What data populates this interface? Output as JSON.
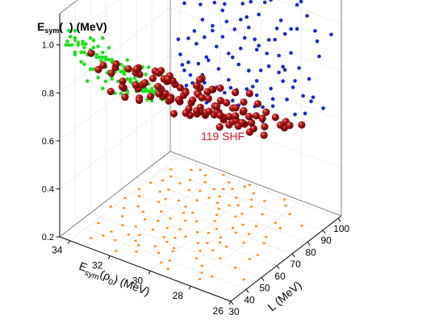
{
  "chart_data": {
    "type": "scatter",
    "title": "",
    "annotation": "119 SHF",
    "axes": {
      "x": {
        "label": "E_sym(ρ0) (MeV)",
        "range": [
          26,
          34.5
        ],
        "ticks": [
          26,
          28,
          30,
          32,
          34
        ]
      },
      "y": {
        "label": "L (MeV)",
        "range": [
          30,
          102
        ],
        "ticks": [
          30,
          40,
          50,
          60,
          70,
          80,
          90,
          100
        ]
      },
      "z": {
        "label": "E_sym(ρ0) (MeV)",
        "range": [
          0.2,
          1.13
        ],
        "ticks": [
          0.2,
          0.4,
          0.6,
          0.8,
          1.0
        ]
      }
    },
    "grid": true,
    "colors": {
      "main": "#b51616",
      "xz": "#1528d6",
      "yz": "#1fe01f",
      "xy": "#ff8c1a",
      "annotation": "#e6131c"
    },
    "points": [
      [
        26.5,
        45,
        0.94
      ],
      [
        27.1,
        62,
        0.83
      ],
      [
        28.2,
        40,
        1.01
      ],
      [
        28.8,
        55,
        0.87
      ],
      [
        27.6,
        74,
        0.72
      ],
      [
        29.5,
        35,
        0.99
      ],
      [
        30.2,
        48,
        0.76
      ],
      [
        31.3,
        38,
        0.96
      ],
      [
        26.9,
        88,
        0.62
      ],
      [
        30.6,
        68,
        0.66
      ],
      [
        31.8,
        44,
        0.9
      ],
      [
        28.3,
        96,
        0.55
      ],
      [
        29.4,
        82,
        0.58
      ],
      [
        32.4,
        52,
        0.79
      ],
      [
        33.4,
        36,
        0.97
      ],
      [
        27.4,
        70,
        0.65
      ],
      [
        28.9,
        61,
        0.73
      ],
      [
        30.9,
        87,
        0.49
      ],
      [
        31.6,
        74,
        0.59
      ],
      [
        32.8,
        62,
        0.73
      ],
      [
        33.8,
        46,
        0.84
      ],
      [
        29.7,
        92,
        0.52
      ],
      [
        30.3,
        57,
        0.8
      ],
      [
        31.2,
        97,
        0.44
      ],
      [
        32.2,
        84,
        0.54
      ],
      [
        33.1,
        77,
        0.61
      ],
      [
        28.6,
        99,
        0.5
      ],
      [
        34.1,
        58,
        0.68
      ],
      [
        31.6,
        64,
        0.7
      ],
      [
        32.6,
        90,
        0.47
      ],
      [
        33.6,
        70,
        0.6
      ],
      [
        30.2,
        76,
        0.63
      ],
      [
        29.2,
        52,
        0.88
      ],
      [
        27.9,
        84,
        0.64
      ],
      [
        31.0,
        52,
        0.86
      ],
      [
        32.0,
        34,
        0.98
      ],
      [
        30.5,
        42,
        0.95
      ],
      [
        28.5,
        44,
        0.9
      ],
      [
        29.6,
        68,
        0.71
      ],
      [
        30.8,
        94,
        0.48
      ],
      [
        32.7,
        71,
        0.65
      ],
      [
        33.3,
        55,
        0.74
      ],
      [
        31.5,
        80,
        0.56
      ],
      [
        28.1,
        66,
        0.75
      ],
      [
        29.9,
        86,
        0.53
      ],
      [
        31.9,
        60,
        0.76
      ],
      [
        33.0,
        44,
        0.86
      ],
      [
        30.4,
        100,
        0.42
      ],
      [
        34.0,
        66,
        0.62
      ],
      [
        27.3,
        50,
        0.93
      ],
      [
        29.1,
        72,
        0.7
      ],
      [
        32.3,
        96,
        0.45
      ],
      [
        30.1,
        62,
        0.78
      ],
      [
        31.4,
        90,
        0.51
      ],
      [
        33.5,
        84,
        0.55
      ],
      [
        28.4,
        78,
        0.66
      ],
      [
        29.8,
        40,
        0.97
      ],
      [
        32.9,
        50,
        0.8
      ],
      [
        31.1,
        72,
        0.67
      ],
      [
        30.7,
        83,
        0.58
      ],
      [
        33.7,
        92,
        0.5
      ],
      [
        27.8,
        92,
        0.57
      ],
      [
        32.1,
        76,
        0.62
      ],
      [
        29.3,
        58,
        0.83
      ],
      [
        31.7,
        100,
        0.43
      ],
      [
        30.0,
        37,
        1.0
      ],
      [
        28.7,
        86,
        0.6
      ],
      [
        33.2,
        64,
        0.69
      ],
      [
        27.2,
        58,
        0.89
      ],
      [
        32.5,
        40,
        0.92
      ],
      [
        30.3,
        90,
        0.52
      ],
      [
        31.3,
        58,
        0.81
      ],
      [
        29.0,
        47,
        0.92
      ],
      [
        32.7,
        98,
        0.46
      ],
      [
        33.9,
        74,
        0.58
      ],
      [
        28.0,
        36,
        1.03
      ],
      [
        30.9,
        45,
        0.93
      ],
      [
        29.5,
        79,
        0.62
      ],
      [
        31.8,
        86,
        0.53
      ],
      [
        33.0,
        96,
        0.48
      ],
      [
        28.8,
        70,
        0.72
      ],
      [
        32.2,
        66,
        0.71
      ],
      [
        30.6,
        54,
        0.84
      ],
      [
        27.5,
        82,
        0.63
      ],
      [
        31.0,
        66,
        0.74
      ],
      [
        29.7,
        64,
        0.76
      ],
      [
        32.4,
        58,
        0.77
      ],
      [
        30.4,
        80,
        0.6
      ],
      [
        33.4,
        88,
        0.52
      ],
      [
        28.2,
        52,
        0.91
      ],
      [
        31.5,
        42,
        0.94
      ],
      [
        29.9,
        96,
        0.47
      ],
      [
        32.9,
        80,
        0.57
      ],
      [
        30.8,
        60,
        0.79
      ],
      [
        28.5,
        60,
        0.8
      ],
      [
        31.2,
        84,
        0.56
      ],
      [
        33.6,
        60,
        0.7
      ],
      [
        29.4,
        88,
        0.55
      ],
      [
        30.0,
        72,
        0.68
      ],
      [
        32.0,
        92,
        0.49
      ],
      [
        27.7,
        40,
        0.98
      ],
      [
        31.9,
        48,
        0.87
      ],
      [
        30.2,
        84,
        0.57
      ],
      [
        33.1,
        40,
        0.91
      ],
      [
        29.2,
        94,
        0.51
      ],
      [
        32.6,
        74,
        0.64
      ],
      [
        30.7,
        50,
        0.88
      ],
      [
        28.9,
        76,
        0.67
      ],
      [
        31.4,
        70,
        0.69
      ],
      [
        30.5,
        98,
        0.46
      ],
      [
        32.3,
        46,
        0.89
      ],
      [
        29.6,
        56,
        0.82
      ],
      [
        33.8,
        80,
        0.56
      ],
      [
        31.1,
        92,
        0.5
      ],
      [
        28.3,
        72,
        0.69
      ],
      [
        30.1,
        46,
        0.91
      ],
      [
        32.8,
        86,
        0.54
      ],
      [
        29.1,
        64,
        0.77
      ],
      [
        31.7,
        54,
        0.83
      ]
    ]
  }
}
